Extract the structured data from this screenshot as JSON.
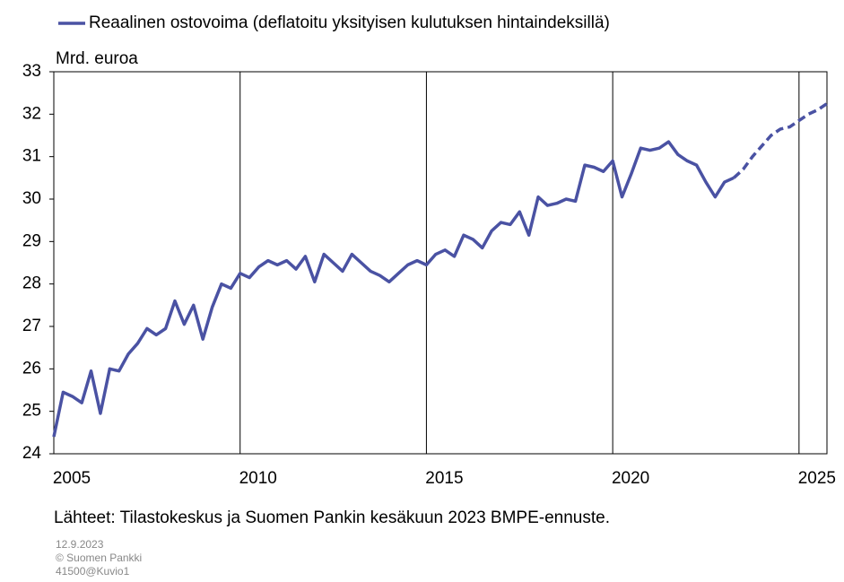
{
  "chart_data": {
    "type": "line",
    "title": "Reaalinen ostovoima (deflatoitu yksityisen kulutuksen hintaindeksillä)",
    "y_label": "Mrd. euroa",
    "source": "Lähteet: Tilastokeskus ja Suomen Pankin kesäkuun 2023 BMPE-ennuste.",
    "footer": [
      "12.9.2023",
      "© Suomen Pankki",
      "41500@Kuvio1"
    ],
    "xlim": [
      2005,
      2025.75
    ],
    "xticks": [
      2005,
      2010,
      2015,
      2020,
      2025
    ],
    "ylim": [
      24,
      33
    ],
    "yticks": [
      24,
      25,
      26,
      27,
      28,
      29,
      30,
      31,
      32,
      33
    ],
    "grid": "x",
    "x": [
      2005,
      2005.25,
      2005.5,
      2005.75,
      2006,
      2006.25,
      2006.5,
      2006.75,
      2007,
      2007.25,
      2007.5,
      2007.75,
      2008,
      2008.25,
      2008.5,
      2008.75,
      2009,
      2009.25,
      2009.5,
      2009.75,
      2010,
      2010.25,
      2010.5,
      2010.75,
      2011,
      2011.25,
      2011.5,
      2011.75,
      2012,
      2012.25,
      2012.5,
      2012.75,
      2013,
      2013.25,
      2013.5,
      2013.75,
      2014,
      2014.25,
      2014.5,
      2014.75,
      2015,
      2015.25,
      2015.5,
      2015.75,
      2016,
      2016.25,
      2016.5,
      2016.75,
      2017,
      2017.25,
      2017.5,
      2017.75,
      2018,
      2018.25,
      2018.5,
      2018.75,
      2019,
      2019.25,
      2019.5,
      2019.75,
      2020,
      2020.25,
      2020.5,
      2020.75,
      2021,
      2021.25,
      2021.5,
      2021.75,
      2022,
      2022.25,
      2022.5,
      2022.75,
      2023,
      2023.25,
      2023.5,
      2023.75,
      2024,
      2024.25,
      2024.5,
      2024.75,
      2025,
      2025.25,
      2025.5,
      2025.75
    ],
    "series": [
      {
        "name": "Reaalinen ostovoima (deflatoitu yksityisen kulutuksen hintaindeksillä)",
        "color": "#4a52a3",
        "dashed": false,
        "values": [
          24.4,
          25.45,
          25.35,
          25.2,
          25.95,
          24.95,
          26.0,
          25.95,
          26.35,
          26.6,
          26.95,
          26.8,
          26.95,
          27.6,
          27.05,
          27.5,
          26.7,
          27.45,
          28.0,
          27.9,
          28.25,
          28.15,
          28.4,
          28.55,
          28.45,
          28.55,
          28.35,
          28.65,
          28.05,
          28.7,
          28.5,
          28.3,
          28.7,
          28.5,
          28.3,
          28.2,
          28.05,
          28.25,
          28.45,
          28.55,
          28.45,
          28.7,
          28.8,
          28.65,
          29.15,
          29.05,
          28.85,
          29.25,
          29.45,
          29.4,
          29.7,
          29.15,
          30.05,
          29.85,
          29.9,
          30.0,
          29.95,
          30.8,
          30.75,
          30.65,
          30.9,
          30.05,
          30.6,
          31.2,
          31.15,
          31.2,
          31.35,
          31.05,
          30.9,
          30.8,
          30.4,
          30.05,
          30.4,
          30.5,
          null,
          null,
          null,
          null,
          null,
          null,
          null,
          null,
          null,
          null
        ]
      },
      {
        "color": "#4a52a3",
        "dashed": true,
        "values": [
          null,
          null,
          null,
          null,
          null,
          null,
          null,
          null,
          null,
          null,
          null,
          null,
          null,
          null,
          null,
          null,
          null,
          null,
          null,
          null,
          null,
          null,
          null,
          null,
          null,
          null,
          null,
          null,
          null,
          null,
          null,
          null,
          null,
          null,
          null,
          null,
          null,
          null,
          null,
          null,
          null,
          null,
          null,
          null,
          null,
          null,
          null,
          null,
          null,
          null,
          null,
          null,
          null,
          null,
          null,
          null,
          null,
          null,
          null,
          null,
          null,
          null,
          null,
          null,
          null,
          null,
          null,
          null,
          null,
          null,
          null,
          null,
          null,
          30.5,
          30.7,
          31.0,
          31.25,
          31.5,
          31.65,
          31.7,
          31.85,
          32.0,
          32.1,
          32.25
        ]
      }
    ]
  }
}
